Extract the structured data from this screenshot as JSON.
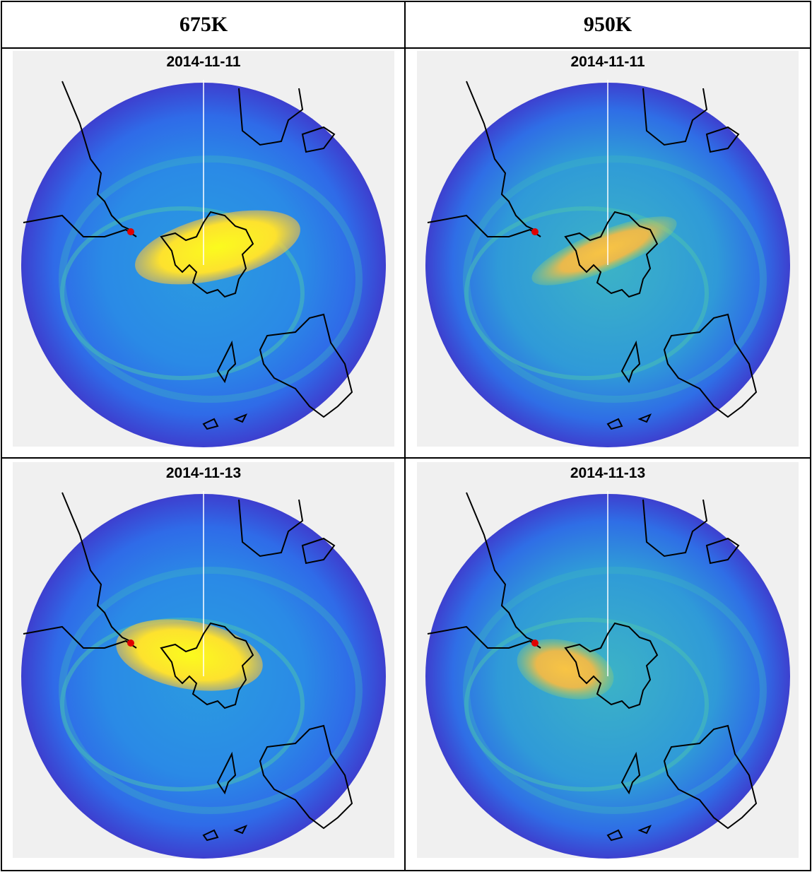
{
  "table": {
    "header": [
      "675K",
      "950K"
    ],
    "rows": [
      [
        "2014-11-11",
        "2014-11-11"
      ],
      [
        "2014-11-13",
        "2014-11-13"
      ]
    ]
  }
}
